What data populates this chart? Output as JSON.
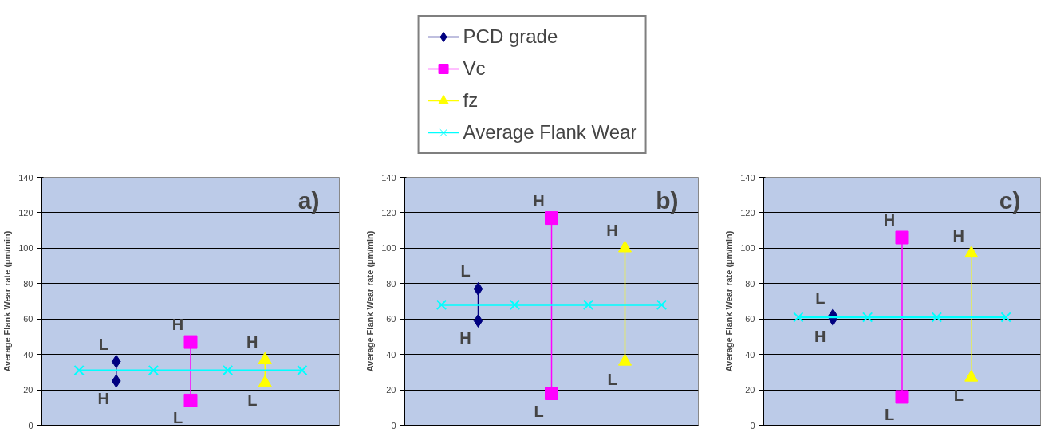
{
  "chart_data": [
    {
      "type": "line",
      "ylabel": "Average Flank Wear rate (µm/min)",
      "categories": [
        null,
        null,
        null,
        null,
        null,
        null,
        null
      ],
      "ylim": [
        0,
        140
      ],
      "yticks": [
        0,
        20,
        40,
        60,
        80,
        100,
        120,
        140
      ],
      "grid": "y",
      "tick_labels": "y",
      "series": [
        {
          "color": "#000080",
          "marker": "diamond",
          "values": [
            null,
            36,
            null,
            null,
            null,
            null,
            null
          ],
          "value_labels": [
            null,
            "L",
            null,
            null,
            null,
            null,
            null
          ]
        },
        {
          "color": "#000080",
          "marker": "diamond",
          "values": [
            null,
            25,
            null,
            null,
            null,
            null,
            null
          ],
          "value_labels": [
            null,
            "H",
            null,
            null,
            null,
            null,
            null
          ]
        },
        {
          "color": "#ff00ff",
          "marker": "square",
          "values": [
            null,
            null,
            null,
            47,
            null,
            null,
            null
          ],
          "value_labels": [
            null,
            null,
            null,
            "H",
            null,
            null,
            null
          ]
        },
        {
          "color": "#ff00ff",
          "marker": "square",
          "values": [
            null,
            null,
            null,
            14,
            null,
            null,
            null
          ],
          "value_labels": [
            null,
            null,
            null,
            "L",
            null,
            null,
            null
          ]
        },
        {
          "color": "#ffff00",
          "marker": "triangle",
          "values": [
            null,
            null,
            null,
            null,
            null,
            37,
            null
          ],
          "value_labels": [
            null,
            null,
            null,
            null,
            null,
            "H",
            null
          ]
        },
        {
          "color": "#ffff00",
          "marker": "triangle",
          "values": [
            null,
            null,
            null,
            null,
            null,
            24,
            null
          ],
          "value_labels": [
            null,
            null,
            null,
            null,
            null,
            "L",
            null
          ]
        },
        {
          "color": "#00ffff",
          "marker": "cross",
          "values": [
            31,
            null,
            31,
            null,
            31,
            null,
            31
          ]
        }
      ],
      "annotations": [
        "a)"
      ]
    },
    {
      "type": "line",
      "ylabel": "Average Flank Wear rate (µm/min)",
      "categories": [
        null,
        null,
        null,
        null,
        null,
        null,
        null
      ],
      "ylim": [
        0,
        140
      ],
      "yticks": [
        0,
        20,
        40,
        60,
        80,
        100,
        120,
        140
      ],
      "grid": "y",
      "tick_labels": "y",
      "legend": "top",
      "series": [
        {
          "name": "PCD grade",
          "color": "#000080",
          "marker": "diamond",
          "values": [
            null,
            77,
            null,
            null,
            null,
            null,
            null
          ],
          "value_labels": [
            null,
            "L",
            null,
            null,
            null,
            null,
            null
          ]
        },
        {
          "color": "#000080",
          "marker": "diamond",
          "values": [
            null,
            59,
            null,
            null,
            null,
            null,
            null
          ],
          "value_labels": [
            null,
            "H",
            null,
            null,
            null,
            null,
            null
          ]
        },
        {
          "name": "Vc",
          "color": "#ff00ff",
          "marker": "square",
          "values": [
            null,
            null,
            null,
            117,
            null,
            null,
            null
          ],
          "value_labels": [
            null,
            null,
            null,
            "H",
            null,
            null,
            null
          ]
        },
        {
          "color": "#ff00ff",
          "marker": "square",
          "values": [
            null,
            null,
            null,
            18,
            null,
            null,
            null
          ],
          "value_labels": [
            null,
            null,
            null,
            "L",
            null,
            null,
            null
          ]
        },
        {
          "name": "fz",
          "color": "#ffff00",
          "marker": "triangle",
          "values": [
            null,
            null,
            null,
            null,
            null,
            100,
            null
          ],
          "value_labels": [
            null,
            null,
            null,
            null,
            null,
            "H",
            null
          ]
        },
        {
          "color": "#ffff00",
          "marker": "triangle",
          "values": [
            null,
            null,
            null,
            null,
            null,
            36,
            null
          ],
          "value_labels": [
            null,
            null,
            null,
            null,
            null,
            "L",
            null
          ]
        },
        {
          "name": "Average Flank Wear",
          "color": "#00ffff",
          "marker": "cross",
          "values": [
            68,
            null,
            68,
            null,
            68,
            null,
            68
          ]
        }
      ],
      "annotations": [
        "b)"
      ]
    },
    {
      "type": "line",
      "ylabel": "Average Flank Wear rate (µm/min)",
      "categories": [
        null,
        null,
        null,
        null,
        null,
        null,
        null
      ],
      "ylim": [
        0,
        140
      ],
      "yticks": [
        0,
        20,
        40,
        60,
        80,
        100,
        120,
        140
      ],
      "grid": "y",
      "tick_labels": "y",
      "series": [
        {
          "color": "#000080",
          "marker": "diamond",
          "values": [
            null,
            62,
            null,
            null,
            null,
            null,
            null
          ],
          "value_labels": [
            null,
            "L",
            null,
            null,
            null,
            null,
            null
          ]
        },
        {
          "color": "#000080",
          "marker": "diamond",
          "values": [
            null,
            60,
            null,
            null,
            null,
            null,
            null
          ],
          "value_labels": [
            null,
            "H",
            null,
            null,
            null,
            null,
            null
          ]
        },
        {
          "color": "#ff00ff",
          "marker": "square",
          "values": [
            null,
            null,
            null,
            106,
            null,
            null,
            null
          ],
          "value_labels": [
            null,
            null,
            null,
            "H",
            null,
            null,
            null
          ]
        },
        {
          "color": "#ff00ff",
          "marker": "square",
          "values": [
            null,
            null,
            null,
            16,
            null,
            null,
            null
          ],
          "value_labels": [
            null,
            null,
            null,
            "L",
            null,
            null,
            null
          ]
        },
        {
          "color": "#ffff00",
          "marker": "triangle",
          "values": [
            null,
            null,
            null,
            null,
            null,
            97,
            null
          ],
          "value_labels": [
            null,
            null,
            null,
            null,
            null,
            "H",
            null
          ]
        },
        {
          "color": "#ffff00",
          "marker": "triangle",
          "values": [
            null,
            null,
            null,
            null,
            null,
            27,
            null
          ],
          "value_labels": [
            null,
            null,
            null,
            null,
            null,
            "L",
            null
          ]
        },
        {
          "color": "#00ffff",
          "marker": "cross",
          "values": [
            61,
            null,
            61,
            null,
            61,
            null,
            61
          ]
        }
      ],
      "annotations": [
        "c)"
      ]
    }
  ]
}
